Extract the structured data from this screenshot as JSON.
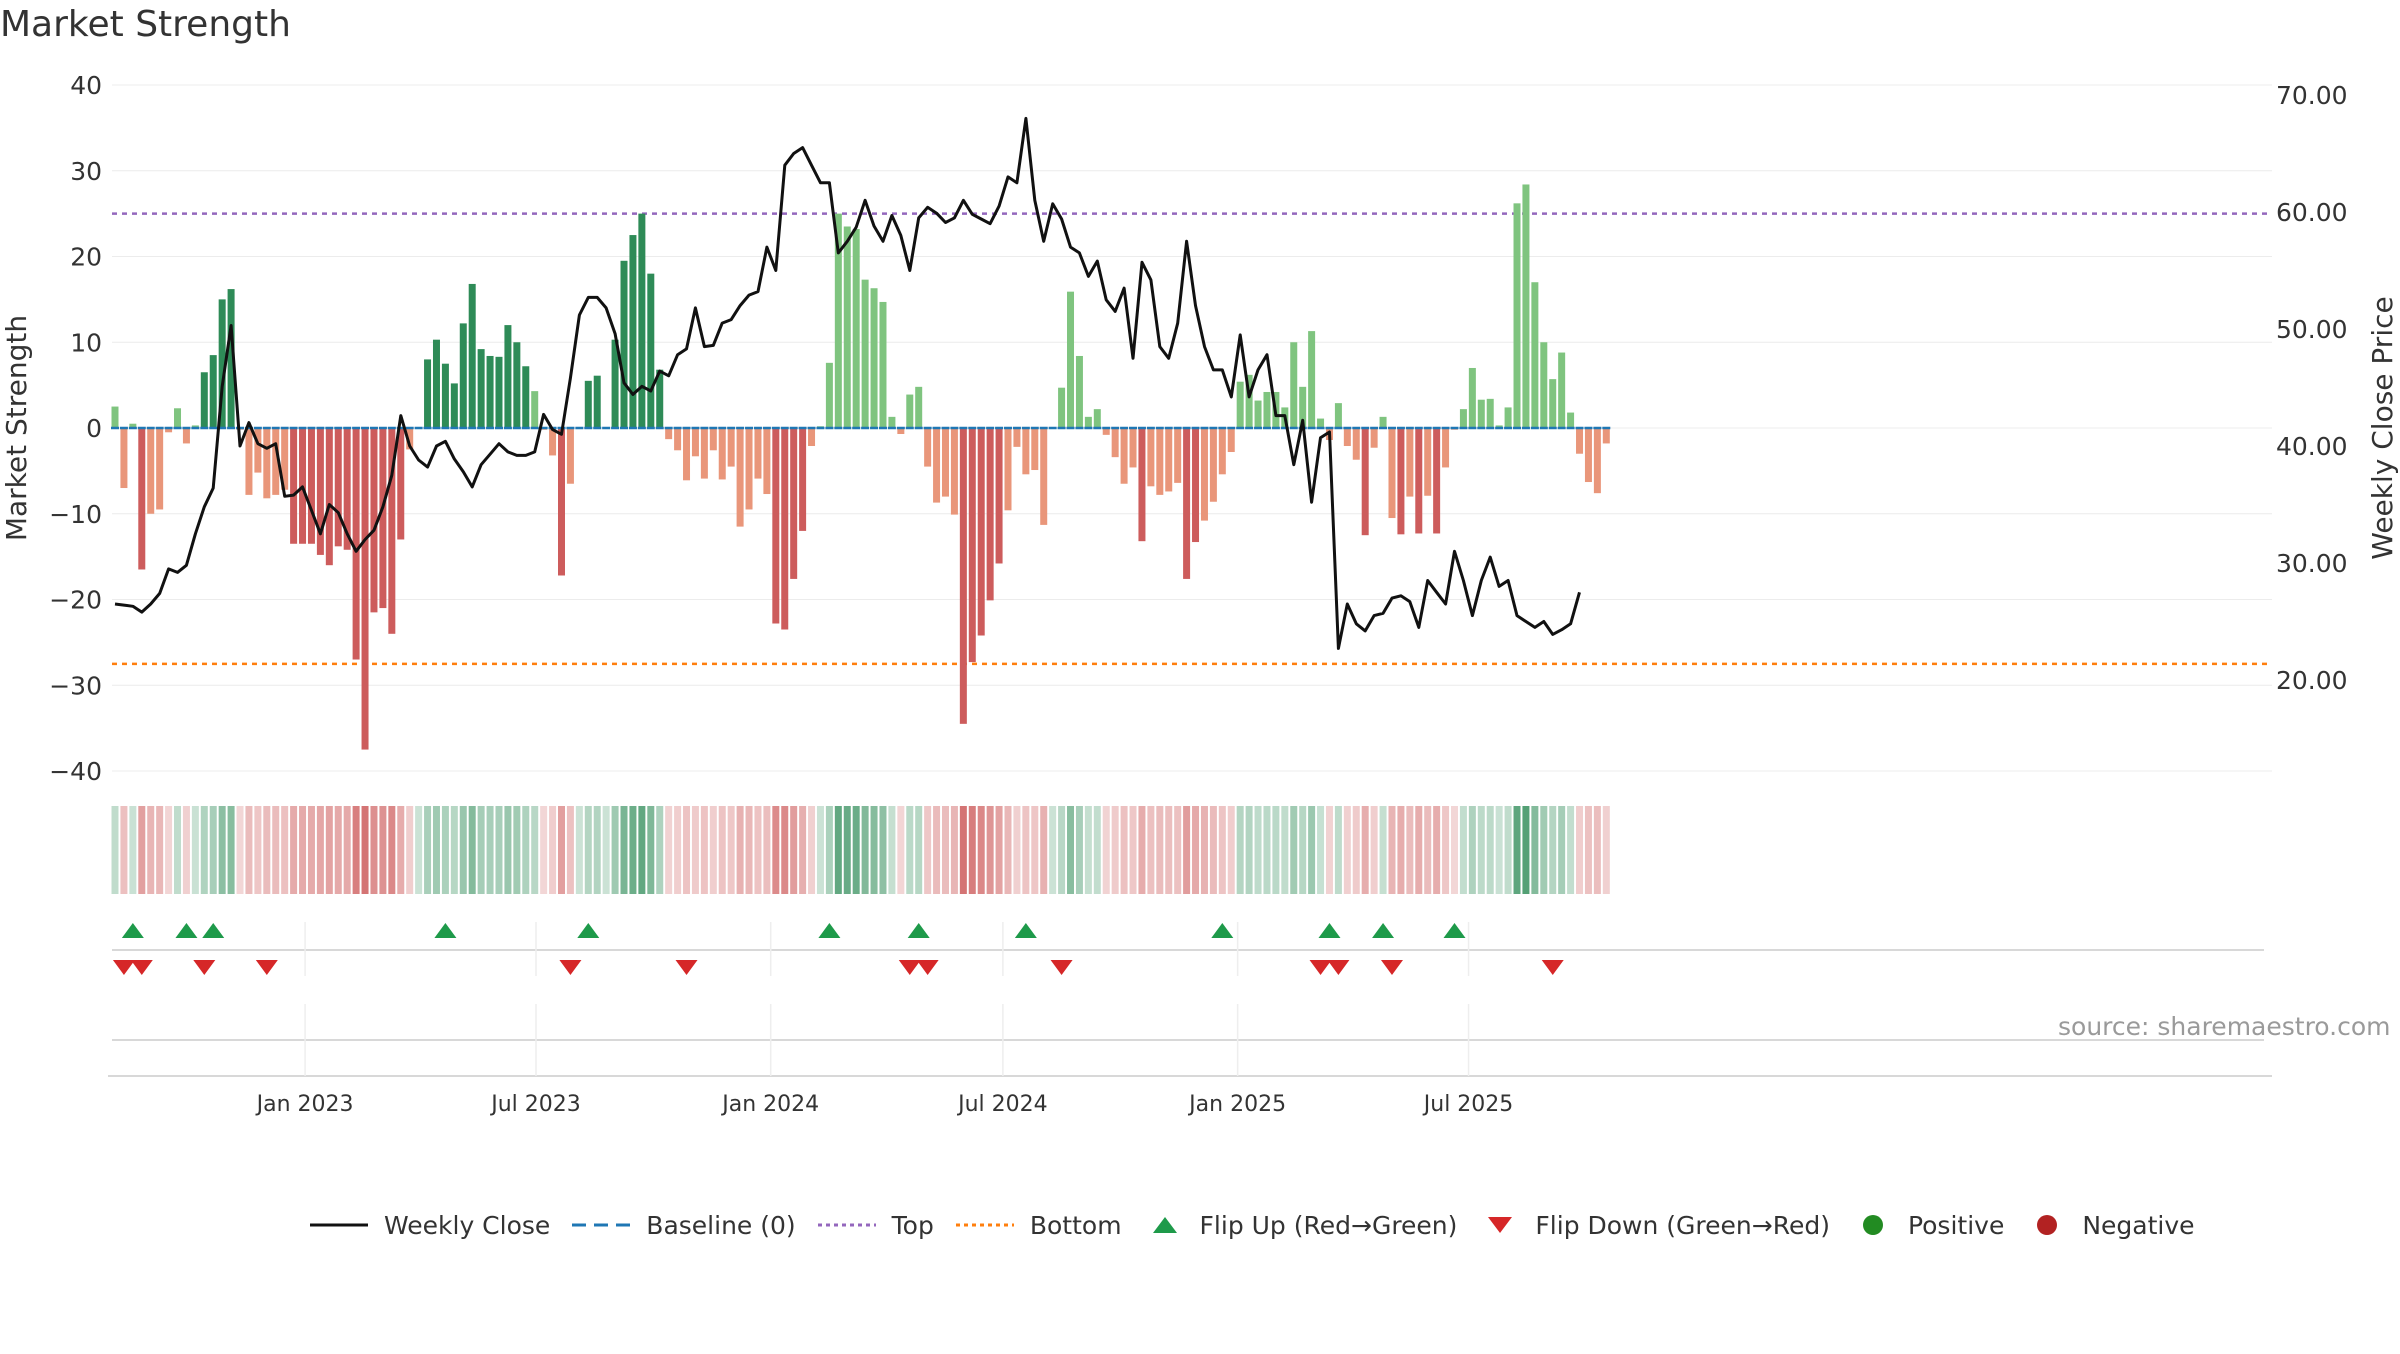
{
  "title": "Market Strength",
  "source": "source: sharemaestro.com",
  "legend": {
    "weekly_close": "Weekly Close",
    "baseline": "Baseline (0)",
    "top": "Top",
    "bottom": "Bottom",
    "flip_up": "Flip Up (Red→Green)",
    "flip_down": "Flip Down (Green→Red)",
    "positive": "Positive",
    "negative": "Negative"
  },
  "colors": {
    "strong_positive": "#2e8b57",
    "weak_positive": "#7fc47f",
    "strong_negative": "#cd5c5c",
    "weak_negative": "#e9967a",
    "line": "#111111",
    "baseline": "#1f77b4",
    "top": "#9467bd",
    "bottom": "#ff7f0e",
    "flip_up": "#1e9a4a",
    "flip_down": "#d62728",
    "positive_dot": "#228b22",
    "negative_dot": "#b22222"
  },
  "chart_data": {
    "type": "bar",
    "title": "Market Strength",
    "ylabel": "Market Strength",
    "y2label": "Weekly Close Price",
    "ylim": [
      -40,
      40
    ],
    "y2lim": [
      12.5,
      70
    ],
    "yticks": [
      "−40",
      "−30",
      "−20",
      "−10",
      "0",
      "10",
      "20",
      "30",
      "40"
    ],
    "y2ticks": [
      "20.00",
      "30.00",
      "40.00",
      "50.00",
      "60.00",
      "70.00"
    ],
    "xticks": [
      {
        "label": "Jan 2023",
        "date": "2023-01-01"
      },
      {
        "label": "Jul 2023",
        "date": "2023-07-01"
      },
      {
        "label": "Jan 2024",
        "date": "2024-01-01"
      },
      {
        "label": "Jul 2024",
        "date": "2024-07-01"
      },
      {
        "label": "Jan 2025",
        "date": "2025-01-01"
      },
      {
        "label": "Jul 2025",
        "date": "2025-07-01"
      }
    ],
    "top_line": 25,
    "bottom_line": -27.5,
    "baseline": 0,
    "first_week": "2022-08-05",
    "week_spacing_days": 7,
    "strength": [
      2.5,
      -7,
      0.5,
      -16.5,
      -10,
      -9.5,
      -0.5,
      2.3,
      -1.8,
      0.3,
      6.5,
      8.5,
      15,
      16.2,
      -0.2,
      -7.8,
      -5.2,
      -8.2,
      -7.8,
      -7.2,
      -13.5,
      -13.5,
      -13.5,
      -14.8,
      -16,
      -13.8,
      -14.2,
      -27,
      -37.5,
      -21.5,
      -21,
      -24,
      -13,
      -2.5,
      0,
      8,
      10.3,
      7.5,
      5.2,
      12.2,
      16.8,
      9.2,
      8.4,
      8.3,
      12,
      10,
      7.2,
      4.3,
      -0.2,
      -3.2,
      -17.2,
      -6.5,
      0,
      5.5,
      6.1,
      0,
      10.3,
      19.5,
      22.5,
      25,
      18,
      6.8,
      -1.3,
      -2.6,
      -6.1,
      -3.3,
      -5.9,
      -2.6,
      -6,
      -4.5,
      -11.5,
      -9.5,
      -5.9,
      -7.7,
      -22.8,
      -23.5,
      -17.6,
      -12,
      -2.1,
      0.2,
      7.6,
      25,
      23.5,
      23.2,
      17.3,
      16.3,
      14.7,
      1.3,
      -0.7,
      3.9,
      4.8,
      -4.5,
      -8.7,
      -8,
      -10.1,
      -34.5,
      -27.3,
      -24.2,
      -20.1,
      -15.8,
      -9.6,
      -2.2,
      -5.4,
      -4.9,
      -11.3,
      0,
      4.7,
      15.9,
      8.4,
      1.3,
      2.2,
      -0.8,
      -3.4,
      -6.5,
      -4.6,
      -13.2,
      -6.8,
      -7.8,
      -7.4,
      -6.4,
      -17.6,
      -13.3,
      -10.8,
      -8.6,
      -5.4,
      -2.8,
      5.4,
      6.2,
      3.2,
      4.2,
      4.2,
      2.4,
      10,
      4.8,
      11.3,
      1.1,
      -1.4,
      2.9,
      -2.1,
      -3.7,
      -12.5,
      -2.3,
      1.3,
      -10.5,
      -12.4,
      -8,
      -12.3,
      -7.9,
      -12.3,
      -4.6,
      -0.2,
      2.2,
      7,
      3.3,
      3.4,
      0.3,
      2.4,
      26.2,
      28.4,
      17,
      10,
      5.7,
      8.8,
      1.8,
      -3,
      -6.3,
      -7.6,
      -1.8
    ],
    "weekly_close": [
      26.5,
      26.4,
      26.3,
      25.8,
      26.5,
      27.4,
      29.5,
      29.2,
      29.8,
      32.5,
      34.8,
      36.4,
      45.1,
      50.3,
      40,
      42,
      40.2,
      39.8,
      40.2,
      35.7,
      35.8,
      36.5,
      34.5,
      32.5,
      35,
      34.3,
      32.5,
      31,
      32,
      32.8,
      34.8,
      37.5,
      42.6,
      40,
      38.8,
      38.2,
      40,
      40.4,
      38.9,
      37.8,
      36.5,
      38.4,
      39.3,
      40.2,
      39.5,
      39.2,
      39.2,
      39.5,
      42.7,
      41.4,
      41,
      45.8,
      51.2,
      52.7,
      52.7,
      51.8,
      49.6,
      45.4,
      44.4,
      45.1,
      44.7,
      46.4,
      46,
      47.8,
      48.3,
      51.8,
      48.5,
      48.6,
      50.5,
      50.8,
      52,
      52.9,
      53.2,
      57,
      55,
      64,
      65,
      65.5,
      64,
      62.5,
      62.5,
      56.5,
      57.5,
      58.7,
      61,
      58.8,
      57.5,
      59.7,
      58,
      55,
      59.5,
      60.4,
      59.9,
      59.1,
      59.5,
      61,
      59.8,
      59.4,
      59,
      60.5,
      63,
      62.5,
      68,
      61,
      57.5,
      60.7,
      59.4,
      57,
      56.5,
      54.5,
      55.8,
      52.5,
      51.5,
      53.5,
      47.5,
      55.7,
      54.2,
      48.5,
      47.5,
      50.5,
      57.5,
      52,
      48.5,
      46.5,
      46.5,
      44.2,
      49.5,
      44.2,
      46.5,
      47.8,
      42.6,
      42.6,
      38.4,
      42.2,
      35.2,
      40.7,
      41.2,
      22.7,
      26.5,
      24.8,
      24.2,
      25.5,
      25.7,
      27,
      27.2,
      26.7,
      24.5,
      28.5,
      27.5,
      26.5,
      31,
      28.5,
      25.5,
      28.5,
      30.5,
      28,
      28.5,
      25.5,
      25,
      24.5,
      25,
      23.9,
      24.3,
      24.8,
      27.5
    ],
    "flip_up": [
      "2022-08-19",
      "2022-09-30",
      "2022-10-21",
      "2023-04-21",
      "2023-08-11",
      "2024-02-16",
      "2024-04-26",
      "2024-07-19",
      "2024-12-20",
      "2025-03-14",
      "2025-04-25",
      "2025-06-20"
    ],
    "flip_down": [
      "2022-08-12",
      "2022-08-26",
      "2022-10-14",
      "2022-12-02",
      "2023-07-28",
      "2023-10-27",
      "2024-04-19",
      "2024-05-03",
      "2024-08-16",
      "2025-03-07",
      "2025-03-21",
      "2025-05-02",
      "2025-09-05"
    ]
  }
}
